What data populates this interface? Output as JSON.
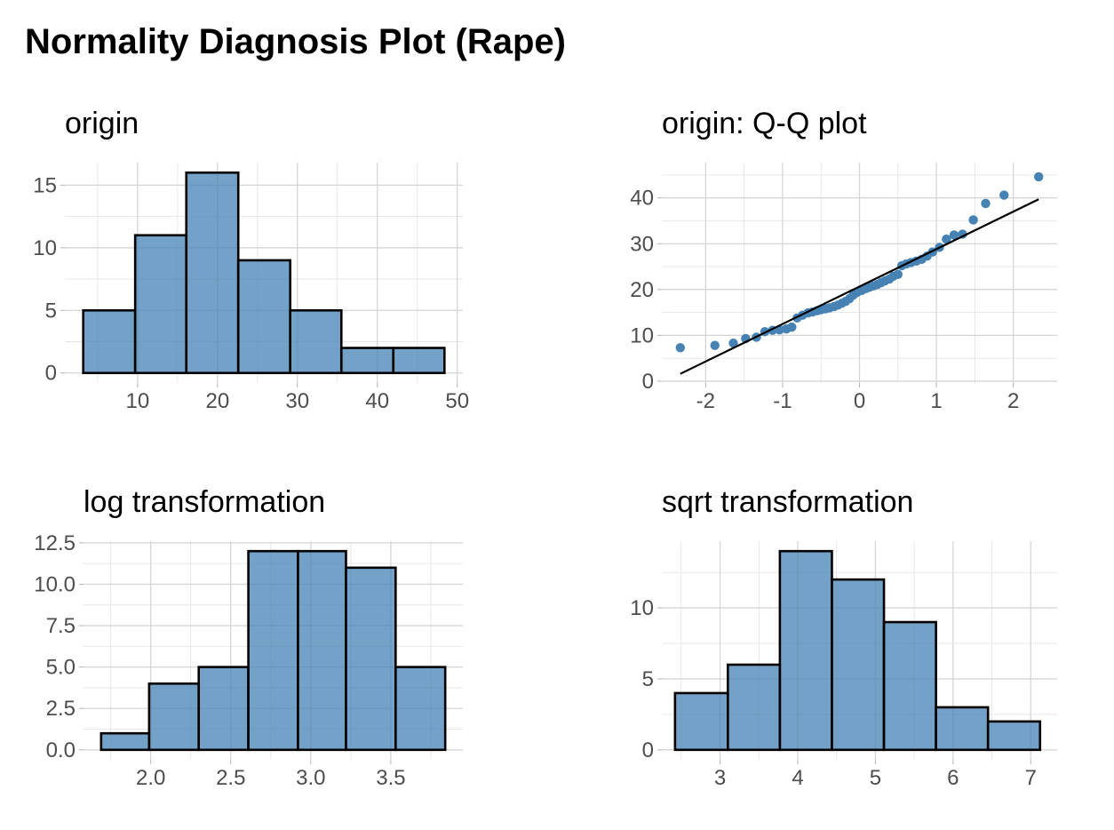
{
  "title": "Normality Diagnosis Plot (Rape)",
  "colors": {
    "fill": "#4682b4",
    "fill_opacity": 0.75,
    "bar_stroke": "#000000",
    "point": "#4682b4",
    "line": "#000000",
    "grid": "#d6d6d6",
    "tick_text": "#4d4d4d"
  },
  "chart_data": [
    {
      "id": "origin",
      "type": "bar",
      "title": "origin",
      "xlabel": "",
      "ylabel": "",
      "bins": [
        [
          3.2,
          9.7
        ],
        [
          9.7,
          16.1
        ],
        [
          16.1,
          22.6
        ],
        [
          22.6,
          29.1
        ],
        [
          29.1,
          35.5
        ],
        [
          35.5,
          42.0
        ],
        [
          42.0,
          48.4
        ]
      ],
      "values": [
        5,
        11,
        16,
        9,
        5,
        2,
        2
      ],
      "xlim": [
        0.9,
        50.7
      ],
      "ylim": [
        -0.8,
        16.8
      ],
      "xticks": [
        10,
        20,
        30,
        40,
        50
      ],
      "xtick_labels": [
        "10",
        "20",
        "30",
        "40",
        "50"
      ],
      "yticks": [
        0,
        5,
        10,
        15
      ],
      "ytick_labels": [
        "0",
        "5",
        "10",
        "15"
      ],
      "xminor": [
        5,
        15,
        25,
        35,
        45
      ],
      "yminor": [
        2.5,
        7.5,
        12.5
      ],
      "grid": true
    },
    {
      "id": "qq",
      "type": "scatter",
      "title": "origin: Q-Q plot",
      "xlabel": "",
      "ylabel": "",
      "points": [
        [
          -2.33,
          7.3
        ],
        [
          -1.88,
          7.8
        ],
        [
          -1.64,
          8.3
        ],
        [
          -1.48,
          9.3
        ],
        [
          -1.34,
          9.6
        ],
        [
          -1.23,
          10.8
        ],
        [
          -1.13,
          11.1
        ],
        [
          -1.04,
          11.2
        ],
        [
          -0.95,
          11.4
        ],
        [
          -0.88,
          11.8
        ],
        [
          -0.81,
          13.8
        ],
        [
          -0.74,
          14.4
        ],
        [
          -0.67,
          14.9
        ],
        [
          -0.61,
          15.1
        ],
        [
          -0.55,
          15.4
        ],
        [
          -0.5,
          15.6
        ],
        [
          -0.44,
          15.8
        ],
        [
          -0.39,
          16.0
        ],
        [
          -0.33,
          16.3
        ],
        [
          -0.28,
          16.6
        ],
        [
          -0.23,
          17.0
        ],
        [
          -0.18,
          17.4
        ],
        [
          -0.13,
          18.0
        ],
        [
          -0.08,
          18.8
        ],
        [
          -0.03,
          19.4
        ],
        [
          0.03,
          19.8
        ],
        [
          0.08,
          20.2
        ],
        [
          0.13,
          20.5
        ],
        [
          0.18,
          20.8
        ],
        [
          0.23,
          21.1
        ],
        [
          0.28,
          21.5
        ],
        [
          0.33,
          21.9
        ],
        [
          0.39,
          22.3
        ],
        [
          0.44,
          22.9
        ],
        [
          0.5,
          23.3
        ],
        [
          0.55,
          25.2
        ],
        [
          0.61,
          25.6
        ],
        [
          0.67,
          25.9
        ],
        [
          0.74,
          26.2
        ],
        [
          0.81,
          26.6
        ],
        [
          0.88,
          27.3
        ],
        [
          0.95,
          28.2
        ],
        [
          1.04,
          29.2
        ],
        [
          1.13,
          31.0
        ],
        [
          1.23,
          31.9
        ],
        [
          1.34,
          32.1
        ],
        [
          1.48,
          35.2
        ],
        [
          1.64,
          38.8
        ],
        [
          1.88,
          40.6
        ],
        [
          2.33,
          44.6
        ]
      ],
      "reference_line": [
        [
          -2.33,
          1.6
        ],
        [
          2.33,
          39.7
        ]
      ],
      "xlim": [
        -2.57,
        2.57
      ],
      "ylim": [
        -0.4,
        47.7
      ],
      "xticks": [
        -2,
        -1,
        0,
        1,
        2
      ],
      "xtick_labels": [
        "-2",
        "-1",
        "0",
        "1",
        "2"
      ],
      "yticks": [
        0,
        10,
        20,
        30,
        40
      ],
      "ytick_labels": [
        "0",
        "10",
        "20",
        "30",
        "40"
      ],
      "xminor": [
        -1.5,
        -0.5,
        0.5,
        1.5
      ],
      "yminor": [
        5,
        15,
        25,
        35,
        45
      ],
      "grid": true
    },
    {
      "id": "log",
      "type": "bar",
      "title": "log transformation",
      "xlabel": "",
      "ylabel": "",
      "bins": [
        [
          1.69,
          1.99
        ],
        [
          1.99,
          2.3
        ],
        [
          2.3,
          2.61
        ],
        [
          2.61,
          2.92
        ],
        [
          2.92,
          3.22
        ],
        [
          3.22,
          3.53
        ],
        [
          3.53,
          3.84
        ]
      ],
      "values": [
        1,
        4,
        5,
        12,
        12,
        11,
        5
      ],
      "xlim": [
        1.58,
        3.95
      ],
      "ylim": [
        -0.6,
        12.6
      ],
      "xticks": [
        2.0,
        2.5,
        3.0,
        3.5
      ],
      "xtick_labels": [
        "2.0",
        "2.5",
        "3.0",
        "3.5"
      ],
      "yticks": [
        0,
        2.5,
        5,
        7.5,
        10,
        12.5
      ],
      "ytick_labels": [
        "0.0",
        "2.5",
        "5.0",
        "7.5",
        "10.0",
        "12.5"
      ],
      "xminor": [
        1.75,
        2.25,
        2.75,
        3.25,
        3.75
      ],
      "yminor": [
        1.25,
        3.75,
        6.25,
        8.75,
        11.25
      ],
      "grid": true
    },
    {
      "id": "sqrt",
      "type": "bar",
      "title": "sqrt transformation",
      "xlabel": "",
      "ylabel": "",
      "bins": [
        [
          2.42,
          3.1
        ],
        [
          3.1,
          3.77
        ],
        [
          3.77,
          4.44
        ],
        [
          4.44,
          5.11
        ],
        [
          5.11,
          5.78
        ],
        [
          5.78,
          6.45
        ],
        [
          6.45,
          7.12
        ]
      ],
      "values": [
        4,
        6,
        14,
        12,
        9,
        3,
        2
      ],
      "xlim": [
        2.25,
        7.34
      ],
      "ylim": [
        -0.7,
        14.7
      ],
      "xticks": [
        3,
        4,
        5,
        6,
        7
      ],
      "xtick_labels": [
        "3",
        "4",
        "5",
        "6",
        "7"
      ],
      "yticks": [
        0,
        5,
        10
      ],
      "ytick_labels": [
        "0",
        "5",
        "10"
      ],
      "xminor": [
        2.5,
        3.5,
        4.5,
        5.5,
        6.5
      ],
      "yminor": [
        2.5,
        7.5,
        12.5
      ],
      "grid": true
    }
  ]
}
